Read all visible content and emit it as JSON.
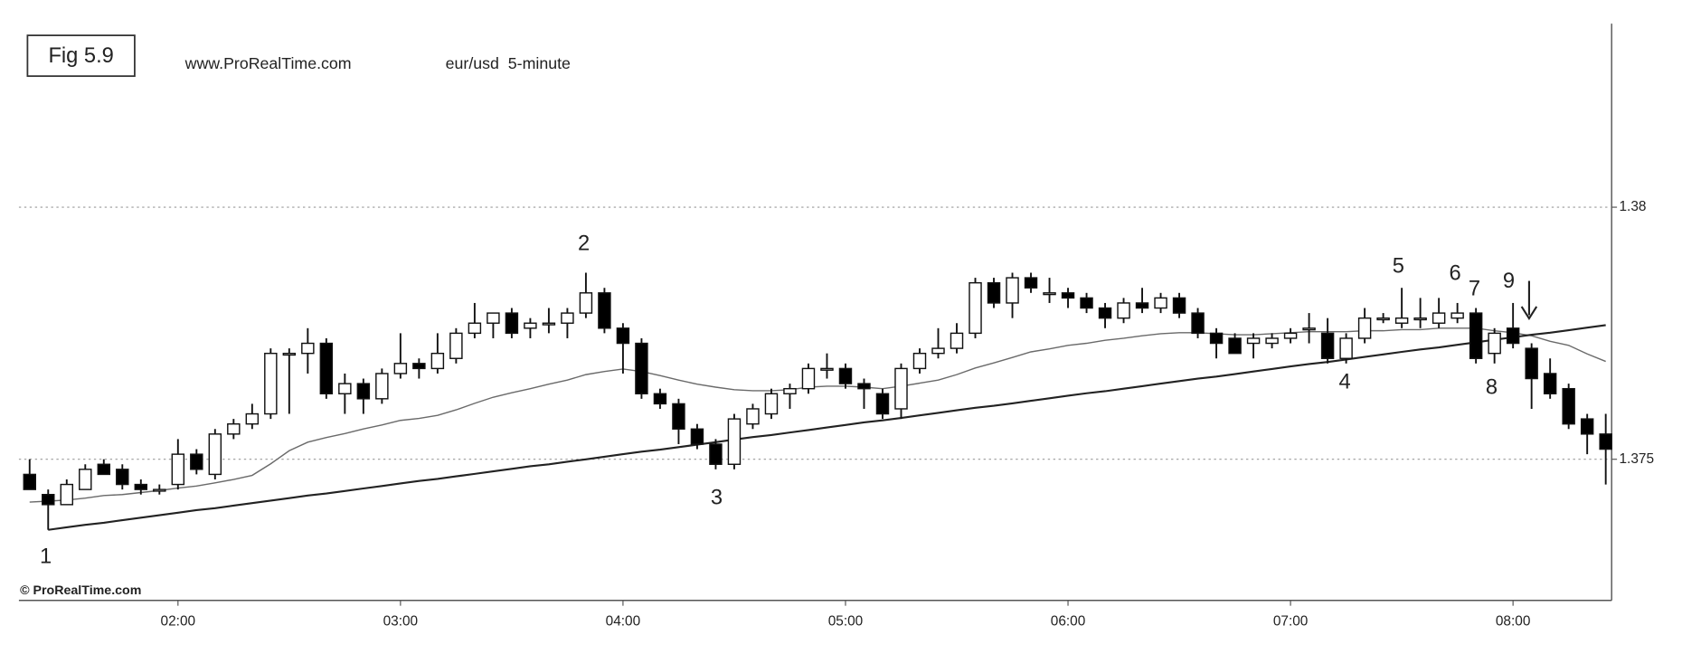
{
  "chart_data": {
    "type": "candlestick",
    "title": "Fig 5.9",
    "source": "www.ProRealTime.com",
    "subtitle": "eur/usd  5-minute",
    "watermark": "© ProRealTime.com",
    "categories": [
      null,
      null,
      null,
      null,
      null,
      null,
      null,
      null,
      "02:00",
      null,
      null,
      null,
      null,
      null,
      null,
      null,
      null,
      null,
      null,
      null,
      "03:00",
      null,
      null,
      null,
      null,
      null,
      null,
      null,
      null,
      null,
      null,
      null,
      "04:00",
      null,
      null,
      null,
      null,
      null,
      null,
      null,
      null,
      null,
      null,
      null,
      "05:00",
      null,
      null,
      null,
      null,
      null,
      null,
      null,
      null,
      null,
      null,
      null,
      "06:00",
      null,
      null,
      null,
      null,
      null,
      null,
      null,
      null,
      null,
      null,
      null,
      "07:00",
      null,
      null,
      null,
      null,
      null,
      null,
      null,
      null,
      null,
      null,
      null,
      "08:00",
      null,
      null,
      null,
      null,
      null
    ],
    "open": [
      1.3747,
      1.3743,
      1.3741,
      1.3744,
      1.3749,
      1.3748,
      1.3745,
      1.3744,
      1.3745,
      1.3751,
      1.3747,
      1.3755,
      1.3757,
      1.3759,
      1.3771,
      1.3771,
      1.3773,
      1.3763,
      1.3765,
      1.3762,
      1.3767,
      1.3769,
      1.3768,
      1.377,
      1.3775,
      1.3777,
      1.3779,
      1.3776,
      1.3777,
      1.3777,
      1.3779,
      1.3783,
      1.3776,
      1.3773,
      1.3763,
      1.3761,
      1.3756,
      1.3753,
      1.3749,
      1.3757,
      1.3759,
      1.3763,
      1.3764,
      1.3768,
      1.3768,
      1.3765,
      1.3763,
      1.376,
      1.3768,
      1.3771,
      1.3772,
      1.3775,
      1.3785,
      1.3781,
      1.3786,
      1.3783,
      1.3783,
      1.3782,
      1.378,
      1.3778,
      1.3781,
      1.378,
      1.3782,
      1.3779,
      1.3775,
      1.3774,
      1.3773,
      1.3773,
      1.3774,
      1.3776,
      1.3775,
      1.377,
      1.3774,
      1.3778,
      1.3777,
      1.3778,
      1.3777,
      1.3778,
      1.3779,
      1.3771,
      1.3776,
      1.3772,
      1.3767,
      1.3764,
      1.3758,
      1.3755
    ],
    "high": [
      1.375,
      1.3744,
      1.3746,
      1.3749,
      1.375,
      1.3749,
      1.3746,
      1.3745,
      1.3754,
      1.3752,
      1.3756,
      1.3758,
      1.3761,
      1.3772,
      1.3772,
      1.3776,
      1.3774,
      1.3767,
      1.3766,
      1.3768,
      1.3775,
      1.377,
      1.3775,
      1.3776,
      1.3781,
      1.3779,
      1.378,
      1.3778,
      1.378,
      1.378,
      1.3787,
      1.3784,
      1.3777,
      1.3774,
      1.3764,
      1.3762,
      1.3757,
      1.3754,
      1.3759,
      1.3761,
      1.3764,
      1.3765,
      1.3769,
      1.3771,
      1.3769,
      1.3766,
      1.3764,
      1.3769,
      1.3772,
      1.3776,
      1.3777,
      1.3786,
      1.3786,
      1.3787,
      1.3787,
      1.3786,
      1.3784,
      1.3783,
      1.3781,
      1.3782,
      1.3784,
      1.3783,
      1.3783,
      1.378,
      1.3776,
      1.3775,
      1.3775,
      1.3775,
      1.3776,
      1.3779,
      1.3778,
      1.3775,
      1.378,
      1.3779,
      1.3784,
      1.3782,
      1.3782,
      1.3781,
      1.378,
      1.3776,
      1.3781,
      1.3773,
      1.377,
      1.3765,
      1.3759,
      1.3759
    ],
    "low": [
      1.3744,
      1.3736,
      1.3741,
      1.3744,
      1.3747,
      1.3744,
      1.3743,
      1.3743,
      1.3744,
      1.3747,
      1.3746,
      1.3754,
      1.3756,
      1.3758,
      1.3759,
      1.3767,
      1.3762,
      1.3759,
      1.3759,
      1.3761,
      1.3766,
      1.3766,
      1.3767,
      1.3769,
      1.3774,
      1.3774,
      1.3774,
      1.3774,
      1.3775,
      1.3774,
      1.3778,
      1.3775,
      1.3767,
      1.3762,
      1.376,
      1.3753,
      1.3752,
      1.3748,
      1.3748,
      1.3756,
      1.3758,
      1.376,
      1.3763,
      1.3766,
      1.3764,
      1.376,
      1.3758,
      1.3758,
      1.3767,
      1.377,
      1.3771,
      1.3774,
      1.378,
      1.3778,
      1.3783,
      1.3781,
      1.378,
      1.3779,
      1.3776,
      1.3777,
      1.3779,
      1.3779,
      1.3778,
      1.3774,
      1.377,
      1.3771,
      1.377,
      1.3772,
      1.3773,
      1.3773,
      1.3769,
      1.3769,
      1.3773,
      1.3777,
      1.3776,
      1.3776,
      1.3776,
      1.3777,
      1.3769,
      1.3769,
      1.3772,
      1.376,
      1.3762,
      1.3756,
      1.3751,
      1.3745
    ],
    "close": [
      1.3744,
      1.3741,
      1.3745,
      1.3748,
      1.3747,
      1.3745,
      1.3744,
      1.3744,
      1.3751,
      1.3748,
      1.3755,
      1.3757,
      1.3759,
      1.3771,
      1.3771,
      1.3773,
      1.3763,
      1.3765,
      1.3762,
      1.3767,
      1.3769,
      1.3768,
      1.3771,
      1.3775,
      1.3777,
      1.3779,
      1.3775,
      1.3777,
      1.3777,
      1.3779,
      1.3783,
      1.3776,
      1.3773,
      1.3763,
      1.3761,
      1.3756,
      1.3753,
      1.3749,
      1.3758,
      1.376,
      1.3763,
      1.3764,
      1.3768,
      1.3768,
      1.3765,
      1.3764,
      1.3759,
      1.3768,
      1.3771,
      1.3772,
      1.3775,
      1.3785,
      1.3781,
      1.3786,
      1.3784,
      1.3783,
      1.3782,
      1.378,
      1.3778,
      1.3781,
      1.378,
      1.3782,
      1.3779,
      1.3775,
      1.3773,
      1.3771,
      1.3774,
      1.3774,
      1.3775,
      1.3776,
      1.377,
      1.3774,
      1.3778,
      1.3778,
      1.3778,
      1.3778,
      1.3779,
      1.3779,
      1.377,
      1.3775,
      1.3773,
      1.3766,
      1.3763,
      1.3757,
      1.3755,
      1.3752
    ],
    "up_color": "#ffffff",
    "down_color": "#000000",
    "lines": [
      {
        "color": "#6a6a6a",
        "values": [
          1.37415,
          1.37417,
          1.37419,
          1.37423,
          1.37428,
          1.3743,
          1.37434,
          1.37438,
          1.37443,
          1.37447,
          1.37453,
          1.3746,
          1.37468,
          1.37491,
          1.37517,
          1.37534,
          1.37543,
          1.37551,
          1.3756,
          1.37568,
          1.37577,
          1.37581,
          1.37587,
          1.37598,
          1.37611,
          1.37623,
          1.37632,
          1.3764,
          1.37649,
          1.37657,
          1.37668,
          1.37674,
          1.37679,
          1.37674,
          1.37666,
          1.37657,
          1.37649,
          1.37643,
          1.37638,
          1.37636,
          1.37636,
          1.37638,
          1.37643,
          1.37645,
          1.37645,
          1.37643,
          1.3764,
          1.37645,
          1.37651,
          1.37657,
          1.37668,
          1.37681,
          1.37691,
          1.37702,
          1.37713,
          1.37719,
          1.37726,
          1.3773,
          1.37736,
          1.3774,
          1.37745,
          1.37749,
          1.37751,
          1.37751,
          1.37749,
          1.37747,
          1.37747,
          1.37749,
          1.37751,
          1.37753,
          1.37753,
          1.37753,
          1.37755,
          1.37755,
          1.37757,
          1.37757,
          1.3776,
          1.3776,
          1.3776,
          1.37755,
          1.37751,
          1.37745,
          1.37734,
          1.37726,
          1.37709,
          1.37694
        ]
      },
      {
        "color": "#222222",
        "values": [
          null,
          1.3736,
          1.37365,
          1.3737,
          1.37374,
          1.37379,
          1.37384,
          1.37389,
          1.37394,
          1.37399,
          1.37403,
          1.37408,
          1.37413,
          1.37418,
          1.37423,
          1.37428,
          1.37432,
          1.37437,
          1.37442,
          1.37447,
          1.37452,
          1.37457,
          1.37461,
          1.37466,
          1.37471,
          1.37476,
          1.37481,
          1.37486,
          1.3749,
          1.37495,
          1.375,
          1.37505,
          1.3751,
          1.37515,
          1.37519,
          1.37524,
          1.37529,
          1.37534,
          1.37539,
          1.37544,
          1.37548,
          1.37553,
          1.37558,
          1.37563,
          1.37568,
          1.37573,
          1.37577,
          1.37582,
          1.37587,
          1.37592,
          1.37597,
          1.37602,
          1.37606,
          1.37611,
          1.37616,
          1.37621,
          1.37626,
          1.37631,
          1.37635,
          1.3764,
          1.37645,
          1.3765,
          1.37655,
          1.3766,
          1.37664,
          1.37669,
          1.37674,
          1.37679,
          1.37684,
          1.37689,
          1.37693,
          1.37698,
          1.37703,
          1.37708,
          1.37713,
          1.37718,
          1.37722,
          1.37727,
          1.37732,
          1.37737,
          1.37742,
          1.37747,
          1.37751,
          1.37756,
          1.37761,
          1.37766
        ]
      }
    ],
    "ylim": [
      1.3722,
      1.3836
    ],
    "yticks": [
      1.375,
      1.38
    ],
    "grid": true,
    "annotations": [
      "1",
      "2",
      "3",
      "4",
      "5",
      "6",
      "7",
      "8",
      "9"
    ]
  }
}
